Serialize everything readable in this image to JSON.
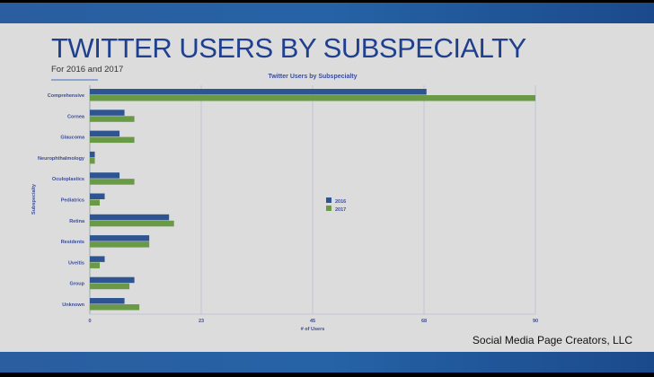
{
  "slide": {
    "title": "TWITTER USERS BY SUBSPECIALTY",
    "subtitle": "For 2016 and 2017",
    "footer": "Social Media Page Creators, LLC"
  },
  "chart_data": {
    "type": "bar",
    "orientation": "horizontal",
    "title": "Twitter Users by Subspecialty",
    "xlabel": "# of Users",
    "ylabel": "Subspecialty",
    "xlim": [
      0,
      90
    ],
    "xticks": [
      "0",
      "23",
      "45",
      "68",
      "90"
    ],
    "grid": true,
    "legend_position": "center",
    "categories": [
      "Comprehensive",
      "Cornea",
      "Glaucoma",
      "Neurophthalmology",
      "Oculoplastics",
      "Pediatrics",
      "Retina",
      "Residents",
      "Uveitis",
      "Group",
      "Unknown"
    ],
    "series": [
      {
        "name": "2016",
        "color": "#2e5591",
        "values": [
          68,
          7,
          6,
          1,
          6,
          3,
          16,
          12,
          3,
          9,
          7
        ]
      },
      {
        "name": "2017",
        "color": "#6a9a45",
        "values": [
          90,
          9,
          9,
          1,
          9,
          2,
          17,
          12,
          2,
          8,
          10
        ]
      }
    ]
  }
}
